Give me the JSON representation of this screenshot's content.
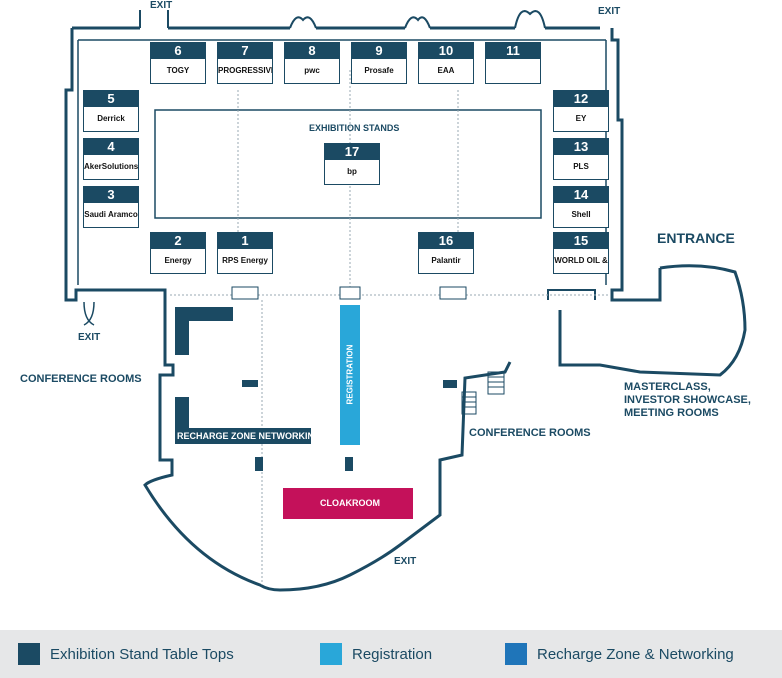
{
  "map": {
    "labels": {
      "exhibition_stands": "EXHIBITION STANDS",
      "entrance": "ENTRANCE",
      "exit_top_left": "EXIT",
      "exit_top_right": "EXIT",
      "exit_left": "EXIT",
      "exit_bottom": "EXIT",
      "conference_rooms_left": "CONFERENCE ROOMS",
      "conference_rooms_right": "CONFERENCE ROOMS",
      "masterclass_line1": "MASTERCLASS,",
      "masterclass_line2": "INVESTOR SHOWCASE,",
      "masterclass_line3": "MEETING ROOMS",
      "recharge_zone": "RECHARGE ZONE NETWORKING",
      "registration": "REGISTRATION",
      "cloakroom": "CLOAKROOM"
    },
    "stands": [
      {
        "num": "6",
        "logo": "TOGY"
      },
      {
        "num": "7",
        "logo": "PROGRESSIVE"
      },
      {
        "num": "8",
        "logo": "pwc"
      },
      {
        "num": "9",
        "logo": "Prosafe"
      },
      {
        "num": "10",
        "logo": "EAA"
      },
      {
        "num": "11",
        "logo": ""
      },
      {
        "num": "5",
        "logo": "Derrick"
      },
      {
        "num": "4",
        "logo": "AkerSolutions"
      },
      {
        "num": "3",
        "logo": "Saudi Aramco"
      },
      {
        "num": "12",
        "logo": "EY"
      },
      {
        "num": "13",
        "logo": "PLS"
      },
      {
        "num": "14",
        "logo": "Shell"
      },
      {
        "num": "2",
        "logo": "Energy"
      },
      {
        "num": "1",
        "logo": "RPS Energy"
      },
      {
        "num": "16",
        "logo": "Palantir"
      },
      {
        "num": "15",
        "logo": "WORLD OIL & GAS WEEK"
      },
      {
        "num": "17",
        "logo": "bp"
      }
    ]
  },
  "legend": {
    "items": [
      {
        "label": "Exhibition Stand Table Tops",
        "color": "#1b4a63"
      },
      {
        "label": "Registration",
        "color": "#29a7d9"
      },
      {
        "label": "Recharge Zone & Networking",
        "color": "#1f75b9"
      }
    ]
  },
  "colors": {
    "wall": "#1b4a63",
    "cloakroom": "#c4115a",
    "registration": "#29a7d9",
    "recharge": "#1f75b9"
  }
}
